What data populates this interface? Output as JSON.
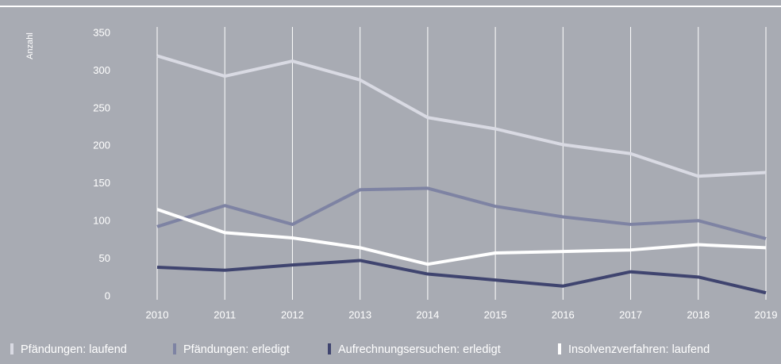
{
  "chart_data": {
    "type": "line",
    "y_label": "Anzahl",
    "categories": [
      "2010",
      "2011",
      "2012",
      "2013",
      "2014",
      "2015",
      "2016",
      "2017",
      "2018",
      "2019"
    ],
    "series": [
      {
        "name": "Pfändungen: laufend",
        "color": "#d9dae3",
        "values": [
          320,
          293,
          313,
          288,
          238,
          223,
          202,
          190,
          160,
          165
        ]
      },
      {
        "name": "Pfändungen: erledigt",
        "color": "#7e83a3",
        "values": [
          93,
          121,
          96,
          142,
          144,
          120,
          106,
          96,
          101,
          77
        ]
      },
      {
        "name": "Aufrechnungsersuchen: erledigt",
        "color": "#3f446f",
        "values": [
          39,
          35,
          42,
          48,
          30,
          22,
          14,
          33,
          26,
          5
        ]
      },
      {
        "name": "Insolvenzverfahren: laufend",
        "color": "#ffffff",
        "values": [
          116,
          85,
          78,
          65,
          43,
          58,
          60,
          62,
          69,
          65
        ]
      }
    ],
    "ylim": [
      0,
      350
    ],
    "yticks": [
      0,
      50,
      100,
      150,
      200,
      250,
      300,
      350
    ]
  }
}
